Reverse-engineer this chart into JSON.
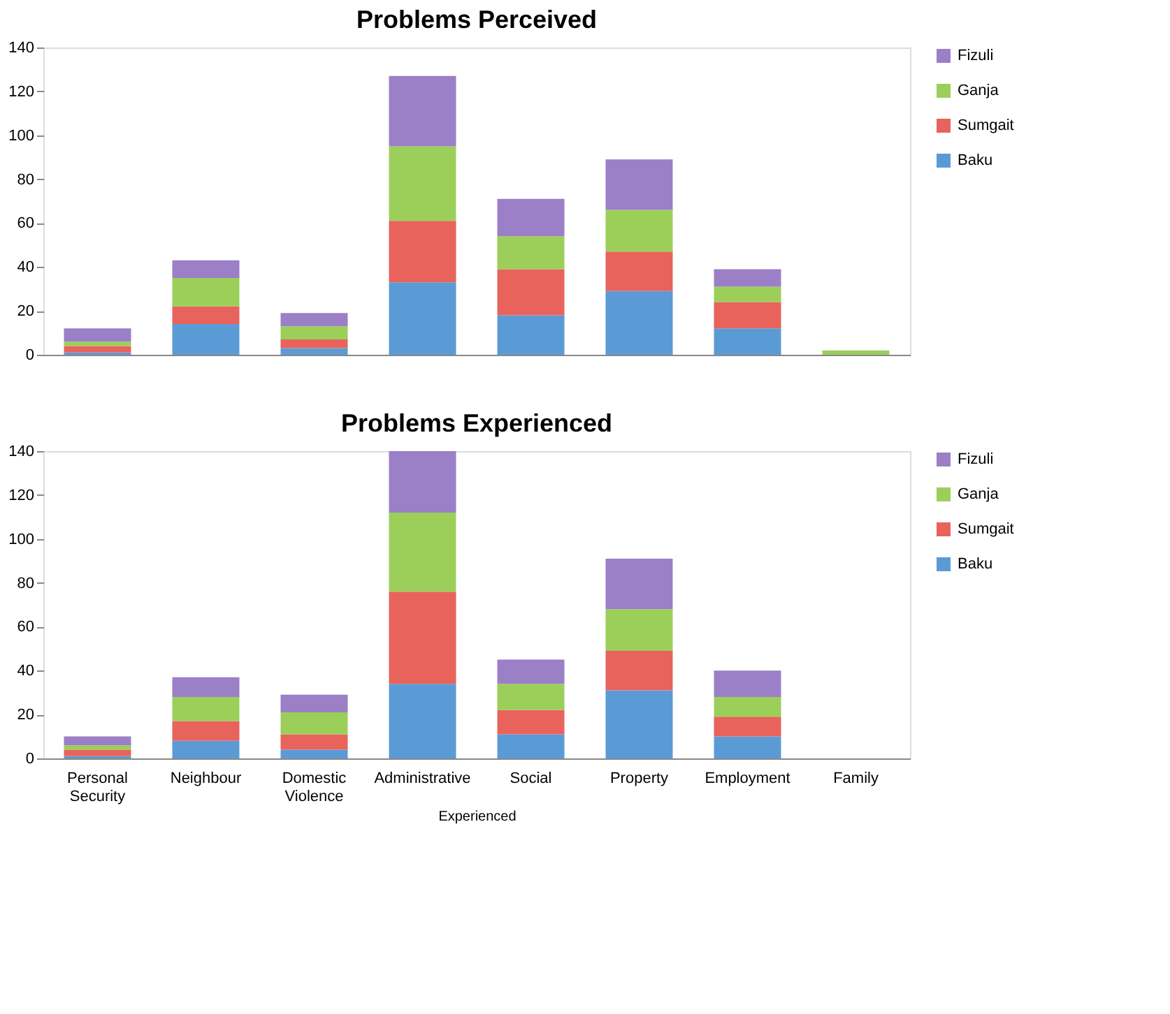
{
  "chart_data": [
    {
      "type": "bar",
      "title": "Problems Perceived",
      "stacked": true,
      "categories": [
        null,
        null,
        null,
        null,
        null,
        null,
        null,
        null
      ],
      "series": [
        {
          "name": "Baku",
          "color": "#5b9bd5",
          "values": [
            1,
            14,
            3,
            33,
            18,
            29,
            12,
            0
          ]
        },
        {
          "name": "Sumgait",
          "color": "#e8635c",
          "values": [
            3,
            8,
            4,
            28,
            21,
            18,
            12,
            0
          ]
        },
        {
          "name": "Ganja",
          "color": "#9bcf5a",
          "values": [
            2,
            13,
            6,
            34,
            15,
            19,
            7,
            2
          ]
        },
        {
          "name": "Fizuli",
          "color": "#9b7fc7",
          "values": [
            6,
            8,
            6,
            32,
            17,
            23,
            8,
            0
          ]
        }
      ],
      "ylim": [
        0,
        140
      ],
      "yticks": [
        0,
        20,
        40,
        60,
        80,
        100,
        120,
        140
      ],
      "grid": false,
      "legend": "right"
    },
    {
      "type": "bar",
      "title": "Problems Experienced",
      "xlabel": "Experienced",
      "stacked": true,
      "categories": [
        "Personal Security",
        "Neighbour",
        "Domestic Violence",
        "Administrative",
        "Social",
        "Property",
        "Employment",
        "Family"
      ],
      "series": [
        {
          "name": "Baku",
          "color": "#5b9bd5",
          "values": [
            1,
            8,
            4,
            34,
            11,
            31,
            10,
            0
          ]
        },
        {
          "name": "Sumgait",
          "color": "#e8635c",
          "values": [
            3,
            9,
            7,
            42,
            11,
            18,
            9,
            0
          ]
        },
        {
          "name": "Ganja",
          "color": "#9bcf5a",
          "values": [
            2,
            11,
            10,
            36,
            12,
            19,
            9,
            0
          ]
        },
        {
          "name": "Fizuli",
          "color": "#9b7fc7",
          "values": [
            4,
            9,
            8,
            28,
            11,
            23,
            12,
            0
          ]
        }
      ],
      "ylim": [
        0,
        140
      ],
      "yticks": [
        0,
        20,
        40,
        60,
        80,
        100,
        120,
        140
      ],
      "grid": false,
      "legend": "right"
    }
  ]
}
